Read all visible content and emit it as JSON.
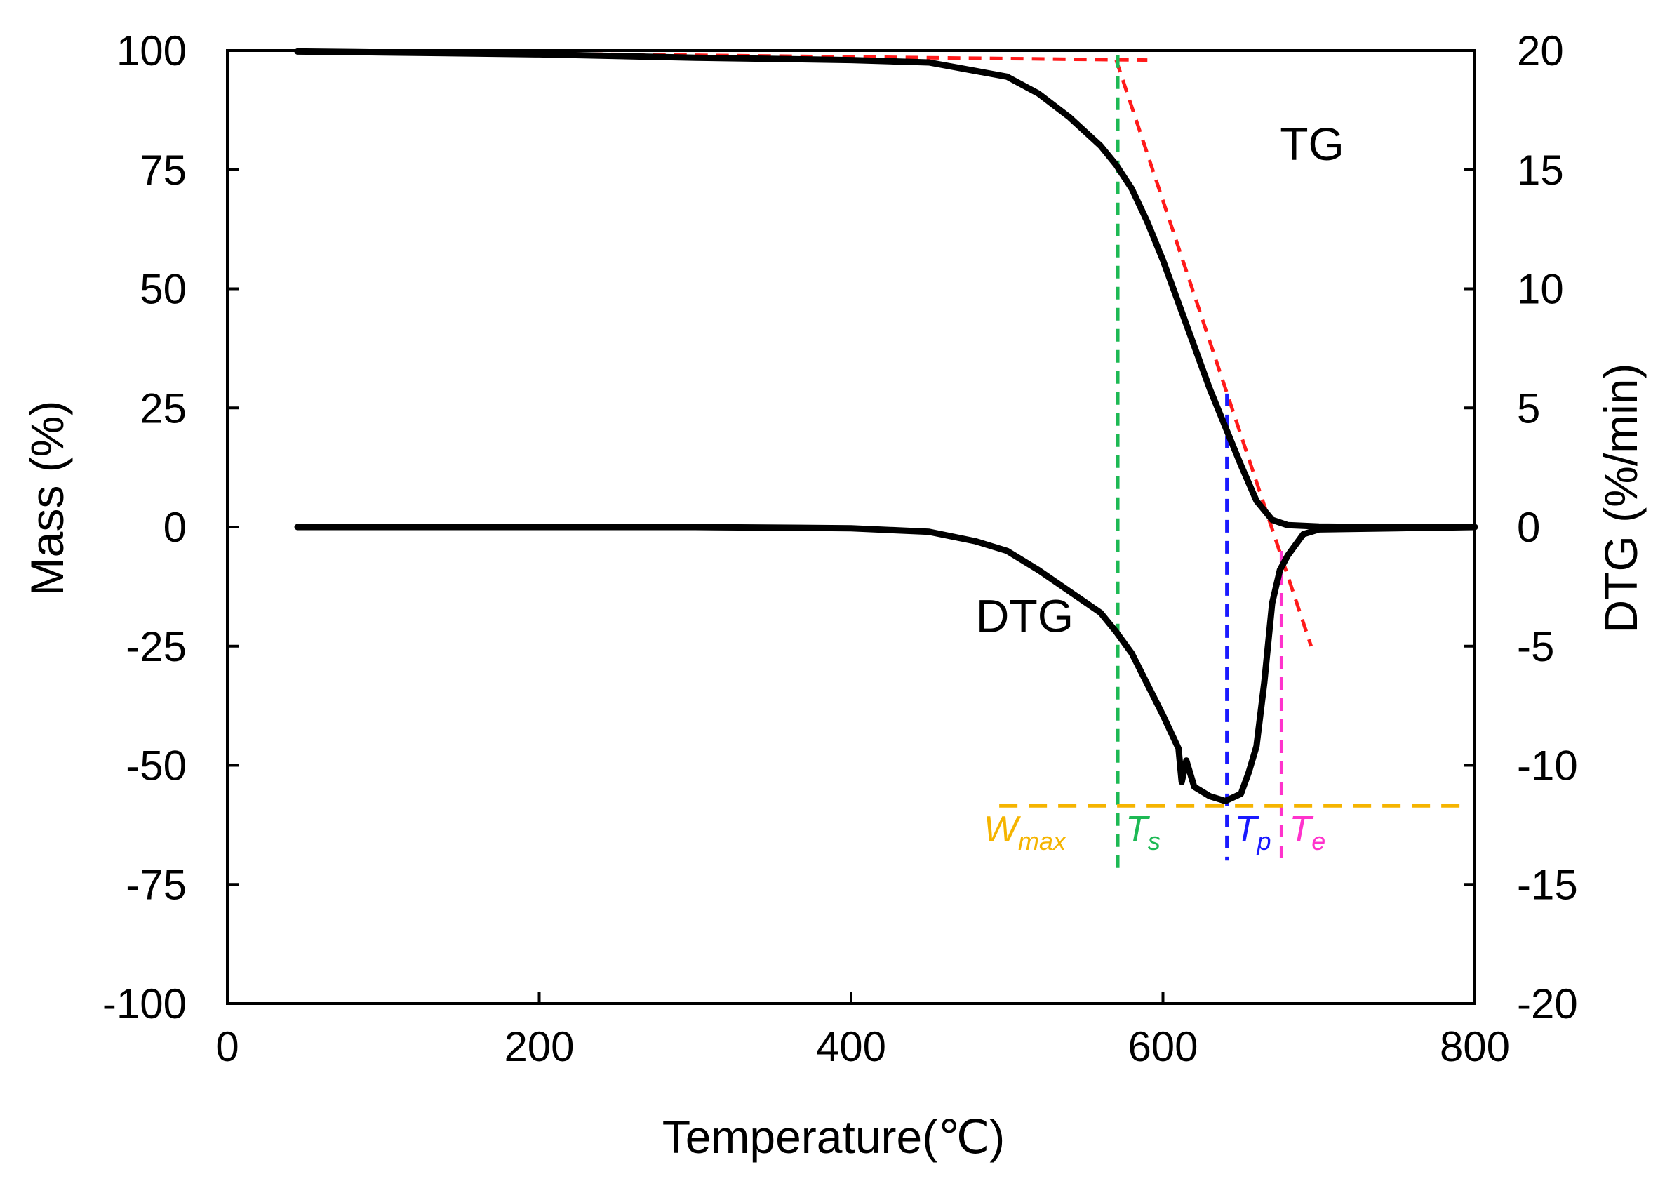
{
  "chart_data": {
    "type": "line",
    "title": "",
    "xlabel": "Temperature(℃)",
    "ylabel_left": "Mass (%)",
    "ylabel_right": "DTG (%/min)",
    "xlim": [
      0,
      800
    ],
    "ylim_left": [
      -100,
      100
    ],
    "ylim_right": [
      -20,
      20
    ],
    "x_ticks": [
      "0",
      "200",
      "400",
      "600",
      "800"
    ],
    "y_left_ticks": [
      "100",
      "75",
      "50",
      "25",
      "0",
      "-25",
      "-50",
      "-75",
      "-100"
    ],
    "y_right_ticks": [
      "20",
      "15",
      "10",
      "5",
      "0",
      "-5",
      "-10",
      "-15",
      "-20"
    ],
    "grid": false,
    "series": [
      {
        "name": "TG",
        "axis": "left",
        "color": "#000000",
        "label": "TG",
        "x": [
          45,
          100,
          200,
          300,
          400,
          450,
          500,
          520,
          540,
          560,
          570,
          580,
          590,
          600,
          610,
          620,
          630,
          640,
          650,
          660,
          670,
          680,
          700,
          750,
          800
        ],
        "y": [
          99.8,
          99.6,
          99.2,
          98.5,
          98.0,
          97.5,
          94.5,
          91.0,
          86.0,
          80.0,
          76.0,
          71.0,
          64.0,
          56.0,
          47.0,
          38.0,
          29.0,
          21.0,
          13.0,
          5.5,
          1.5,
          0.4,
          0.1,
          0.0,
          0.0
        ]
      },
      {
        "name": "DTG",
        "axis": "right",
        "color": "#000000",
        "label": "DTG",
        "x": [
          45,
          100,
          200,
          300,
          400,
          450,
          480,
          500,
          520,
          540,
          560,
          570,
          580,
          590,
          600,
          610,
          612,
          615,
          620,
          630,
          640,
          650,
          655,
          660,
          665,
          670,
          675,
          680,
          690,
          700,
          750,
          800
        ],
        "y": [
          0.0,
          0.0,
          0.0,
          0.0,
          -0.05,
          -0.2,
          -0.6,
          -1.0,
          -1.8,
          -2.7,
          -3.6,
          -4.4,
          -5.3,
          -6.6,
          -7.9,
          -9.3,
          -10.7,
          -9.8,
          -10.9,
          -11.3,
          -11.5,
          -11.2,
          -10.3,
          -9.2,
          -6.5,
          -3.2,
          -1.8,
          -1.2,
          -0.3,
          -0.1,
          -0.05,
          0.0
        ]
      }
    ],
    "reference_lines": [
      {
        "name": "TG tangent (baseline)",
        "color": "#ff1a1a",
        "style": "dashed",
        "axis": "left",
        "x": [
          165,
          590
        ],
        "y": [
          99.5,
          98.0
        ]
      },
      {
        "name": "TG tangent (max slope)",
        "color": "#ff1a1a",
        "style": "dashed",
        "axis": "left",
        "x": [
          570,
          695
        ],
        "y": [
          98.0,
          -25.0
        ]
      },
      {
        "name": "Ts",
        "color": "#1db954",
        "style": "dashed",
        "x_value": 571,
        "y_range_left": [
          99.0,
          -73.0
        ]
      },
      {
        "name": "Tp",
        "color": "#1a1aff",
        "style": "dashed",
        "x_value": 641,
        "y_range_left": [
          28.0,
          -70.0
        ]
      },
      {
        "name": "Te",
        "color": "#ff33cc",
        "style": "dashed",
        "x_value": 676,
        "y_range_left": [
          -5.0,
          -71.0
        ]
      },
      {
        "name": "Wmax",
        "color": "#f5b400",
        "style": "dashed",
        "axis": "right",
        "y_value": -11.7,
        "x_range": [
          495,
          795
        ]
      }
    ],
    "annotations": [
      {
        "id": "tg",
        "text": "TG",
        "x": 675,
        "y_left": 77
      },
      {
        "id": "dtg",
        "text": "DTG",
        "x": 480,
        "y_left": -22
      },
      {
        "id": "wmax",
        "text": "W",
        "sub": "max",
        "color": "#f5b400",
        "x": 485,
        "y_left": -66
      },
      {
        "id": "ts",
        "text": "T",
        "sub": "s",
        "color": "#1db954",
        "x": 576,
        "y_left": -66
      },
      {
        "id": "tp",
        "text": "T",
        "sub": "p",
        "color": "#1a1aff",
        "x": 646,
        "y_left": -66
      },
      {
        "id": "te",
        "text": "T",
        "sub": "e",
        "color": "#ff33cc",
        "x": 681,
        "y_left": -66
      }
    ]
  }
}
